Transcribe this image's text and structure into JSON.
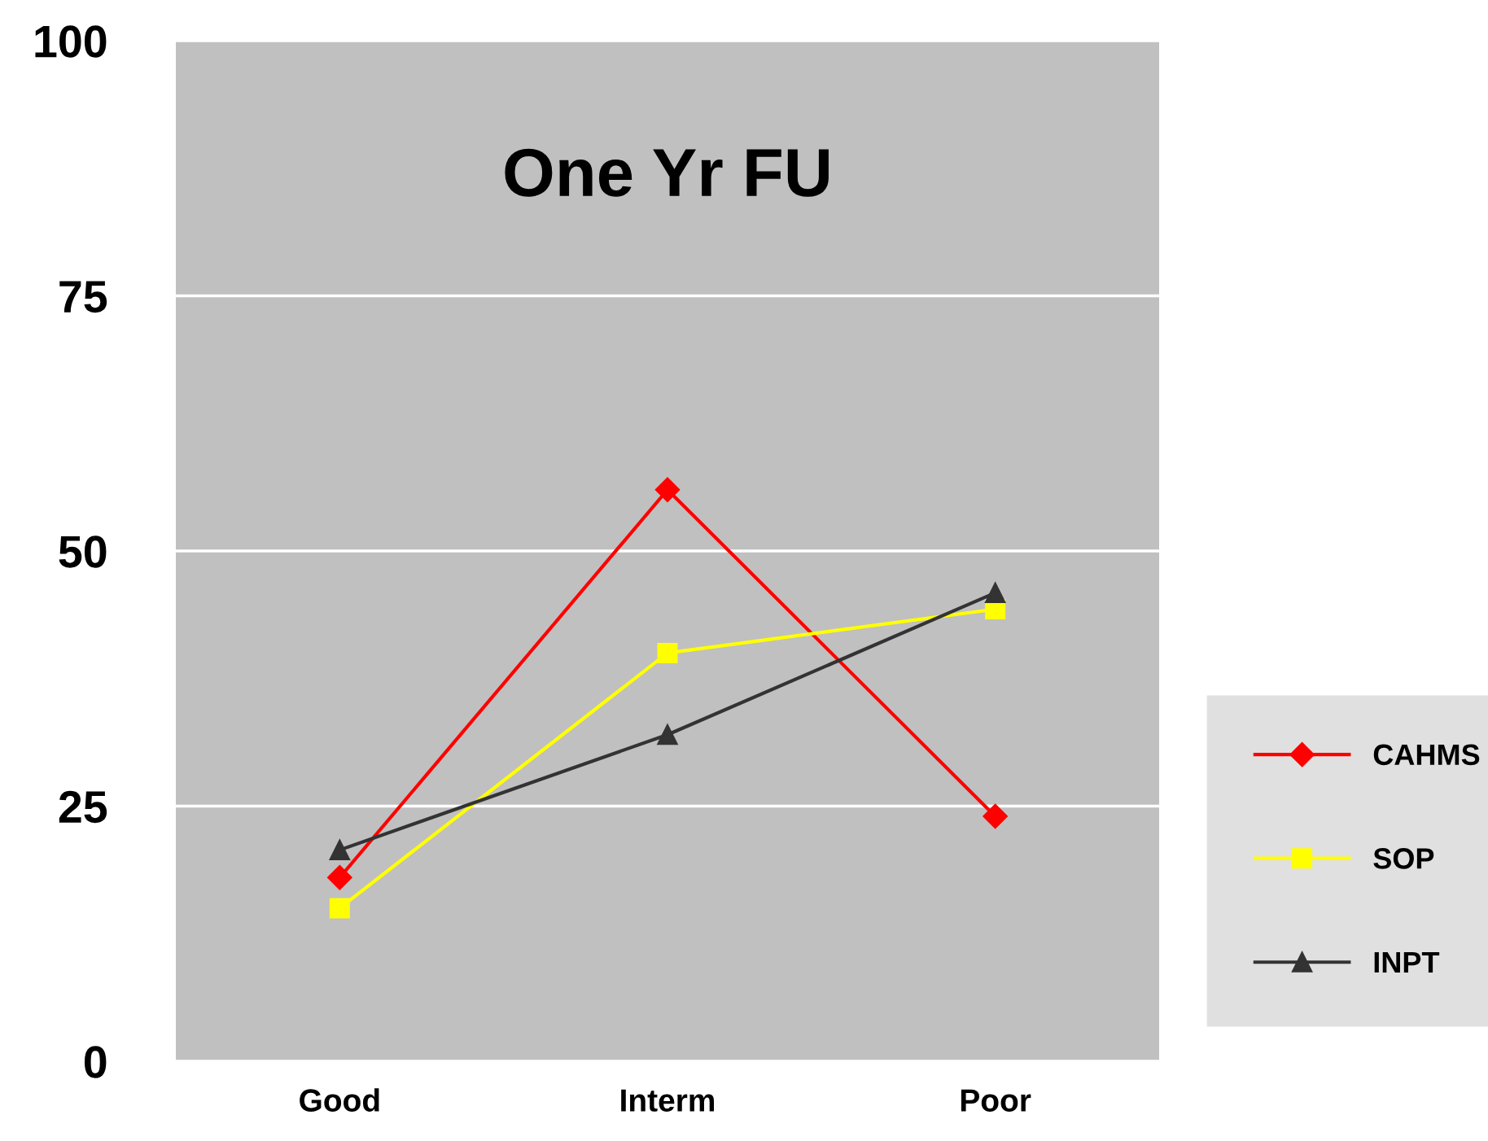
{
  "chart_data": {
    "type": "line",
    "title": "One Yr FU",
    "categories": [
      "Good",
      "Interm",
      "Poor"
    ],
    "series": [
      {
        "name": "CAHMS",
        "color": "#ff0000",
        "marker": "diamond",
        "values": [
          18,
          56,
          24
        ]
      },
      {
        "name": "SOP",
        "color": "#ffff00",
        "marker": "square",
        "values": [
          15,
          40,
          44.3
        ]
      },
      {
        "name": "INPT",
        "color": "#333333",
        "marker": "triangle",
        "values": [
          20.7,
          32,
          45.9
        ]
      }
    ],
    "ylim": [
      0,
      100
    ],
    "yticks": [
      0,
      25,
      50,
      75,
      100
    ],
    "grid": "y",
    "legend": "right"
  }
}
